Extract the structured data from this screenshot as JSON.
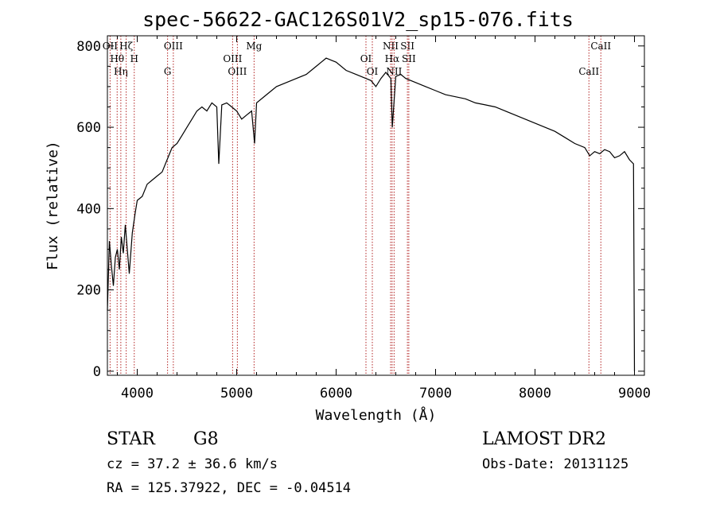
{
  "chart_data": {
    "type": "line",
    "title": "spec-56622-GAC126S01V2_sp15-076.fits",
    "xlabel": "Wavelength (Å)",
    "ylabel": "Flux (relative)",
    "xlim": [
      3700,
      9100
    ],
    "ylim": [
      -10,
      825
    ],
    "xticks": [
      4000,
      5000,
      6000,
      7000,
      8000,
      9000
    ],
    "yticks": [
      0,
      200,
      400,
      600,
      800
    ],
    "grid": false,
    "line_color": "#000000",
    "marker_color": "#b22222",
    "series": [
      {
        "x": [
          3700,
          3720,
          3740,
          3760,
          3780,
          3800,
          3820,
          3840,
          3860,
          3880,
          3900,
          3920,
          3950,
          3980,
          4000,
          4050,
          4100,
          4150,
          4200,
          4250,
          4300,
          4350,
          4400,
          4450,
          4500,
          4550,
          4600,
          4650,
          4700,
          4750,
          4800,
          4820,
          4850,
          4900,
          4950,
          5000,
          5050,
          5100,
          5150,
          5180,
          5200,
          5300,
          5400,
          5500,
          5600,
          5700,
          5800,
          5850,
          5900,
          5950,
          6000,
          6100,
          6200,
          6300,
          6350,
          6400,
          6450,
          6500,
          6550,
          6565,
          6600,
          6650,
          6700,
          6800,
          6900,
          7000,
          7100,
          7200,
          7300,
          7400,
          7500,
          7600,
          7700,
          7800,
          7900,
          8000,
          8100,
          8200,
          8300,
          8400,
          8500,
          8550,
          8600,
          8650,
          8700,
          8750,
          8800,
          8850,
          8900,
          8950,
          8990,
          9000
        ],
        "y": [
          150,
          320,
          260,
          210,
          280,
          300,
          250,
          330,
          290,
          360,
          300,
          240,
          340,
          390,
          420,
          430,
          460,
          470,
          480,
          490,
          520,
          550,
          560,
          580,
          600,
          620,
          640,
          650,
          640,
          660,
          650,
          510,
          655,
          660,
          650,
          640,
          620,
          630,
          640,
          560,
          660,
          680,
          700,
          710,
          720,
          730,
          750,
          760,
          770,
          765,
          760,
          740,
          730,
          720,
          715,
          700,
          720,
          735,
          720,
          600,
          725,
          730,
          720,
          710,
          700,
          690,
          680,
          675,
          670,
          660,
          655,
          650,
          640,
          630,
          620,
          610,
          600,
          590,
          575,
          560,
          550,
          530,
          540,
          535,
          545,
          540,
          525,
          530,
          540,
          520,
          510,
          0
        ]
      }
    ],
    "lines": [
      {
        "x": 3727,
        "label": "OII"
      },
      {
        "x": 3798,
        "label": "Hθ"
      },
      {
        "x": 3835,
        "label": "Hη"
      },
      {
        "x": 3889,
        "label": "Hζ"
      },
      {
        "x": 3970,
        "label": "H"
      },
      {
        "x": 4305,
        "label": "G"
      },
      {
        "x": 4363,
        "label": "OIII"
      },
      {
        "x": 4959,
        "label": "OIII"
      },
      {
        "x": 5007,
        "label": "OIII"
      },
      {
        "x": 5175,
        "label": "Mg"
      },
      {
        "x": 6300,
        "label": "OI"
      },
      {
        "x": 6364,
        "label": "OI"
      },
      {
        "x": 6548,
        "label": "NII"
      },
      {
        "x": 6563,
        "label": "Hα"
      },
      {
        "x": 6583,
        "label": "NII"
      },
      {
        "x": 6717,
        "label": "SII"
      },
      {
        "x": 6731,
        "label": "SII"
      },
      {
        "x": 8542,
        "label": "CaII"
      },
      {
        "x": 8662,
        "label": "CaII"
      }
    ]
  },
  "info": {
    "class": "STAR",
    "subclass": "G8",
    "survey": "LAMOST DR2",
    "cz": "cz = 37.2 ± 36.6 km/s",
    "obs_date": "Obs-Date: 20131125",
    "coords": "RA = 125.37922, DEC =  -0.04514"
  }
}
